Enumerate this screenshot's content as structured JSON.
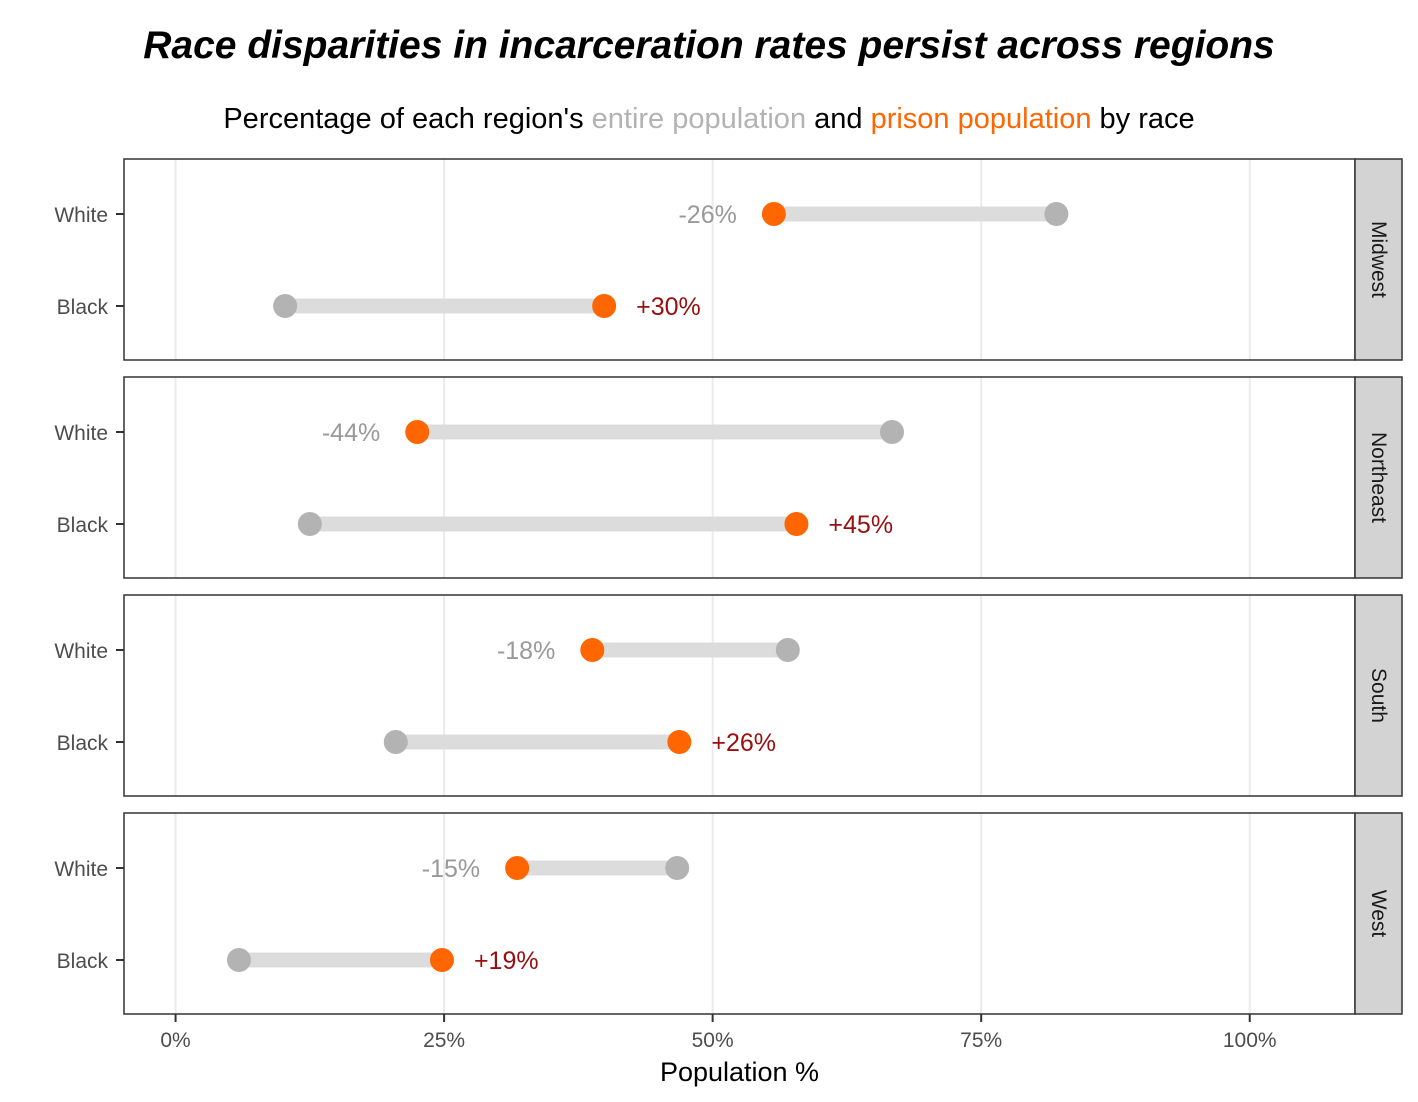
{
  "chart_data": {
    "type": "dumbbell",
    "title": "Race disparities in incarceration rates persist across regions",
    "subtitle": {
      "part1": "Percentage of each region's ",
      "part2": "entire population",
      "part3": " and ",
      "part4": "prison population",
      "part5": " by race"
    },
    "xlabel": "Population %",
    "xlim": [
      -4.8,
      109.8
    ],
    "x_ticks": [
      0,
      25,
      50,
      75,
      100
    ],
    "x_tick_labels": [
      "0%",
      "25%",
      "50%",
      "75%",
      "100%"
    ],
    "grid": true,
    "categories": [
      "White",
      "Black"
    ],
    "series": [
      {
        "name": "entire population",
        "color": "#b3b3b3"
      },
      {
        "name": "prison population",
        "color": "#ff6600"
      }
    ],
    "segment_color": "#dcdcdc",
    "colors": {
      "negative_label": "#999999",
      "positive_label": "#990f0f",
      "strip_fill": "#d3d3d3",
      "grid": "#ebebeb"
    },
    "panels": [
      {
        "region": "Midwest",
        "rows": [
          {
            "race": "White",
            "entire_population": 82,
            "prison_population": 55.7,
            "diff_label": "-26%"
          },
          {
            "race": "Black",
            "entire_population": 10.2,
            "prison_population": 39.9,
            "diff_label": "+30%"
          }
        ]
      },
      {
        "region": "Northeast",
        "rows": [
          {
            "race": "White",
            "entire_population": 66.7,
            "prison_population": 22.5,
            "diff_label": "-44%"
          },
          {
            "race": "Black",
            "entire_population": 12.5,
            "prison_population": 57.8,
            "diff_label": "+45%"
          }
        ]
      },
      {
        "region": "South",
        "rows": [
          {
            "race": "White",
            "entire_population": 57,
            "prison_population": 38.8,
            "diff_label": "-18%"
          },
          {
            "race": "Black",
            "entire_population": 20.5,
            "prison_population": 46.9,
            "diff_label": "+26%"
          }
        ]
      },
      {
        "region": "West",
        "rows": [
          {
            "race": "White",
            "entire_population": 46.7,
            "prison_population": 31.8,
            "diff_label": "-15%"
          },
          {
            "race": "Black",
            "entire_population": 5.9,
            "prison_population": 24.8,
            "diff_label": "+19%"
          }
        ]
      }
    ]
  }
}
